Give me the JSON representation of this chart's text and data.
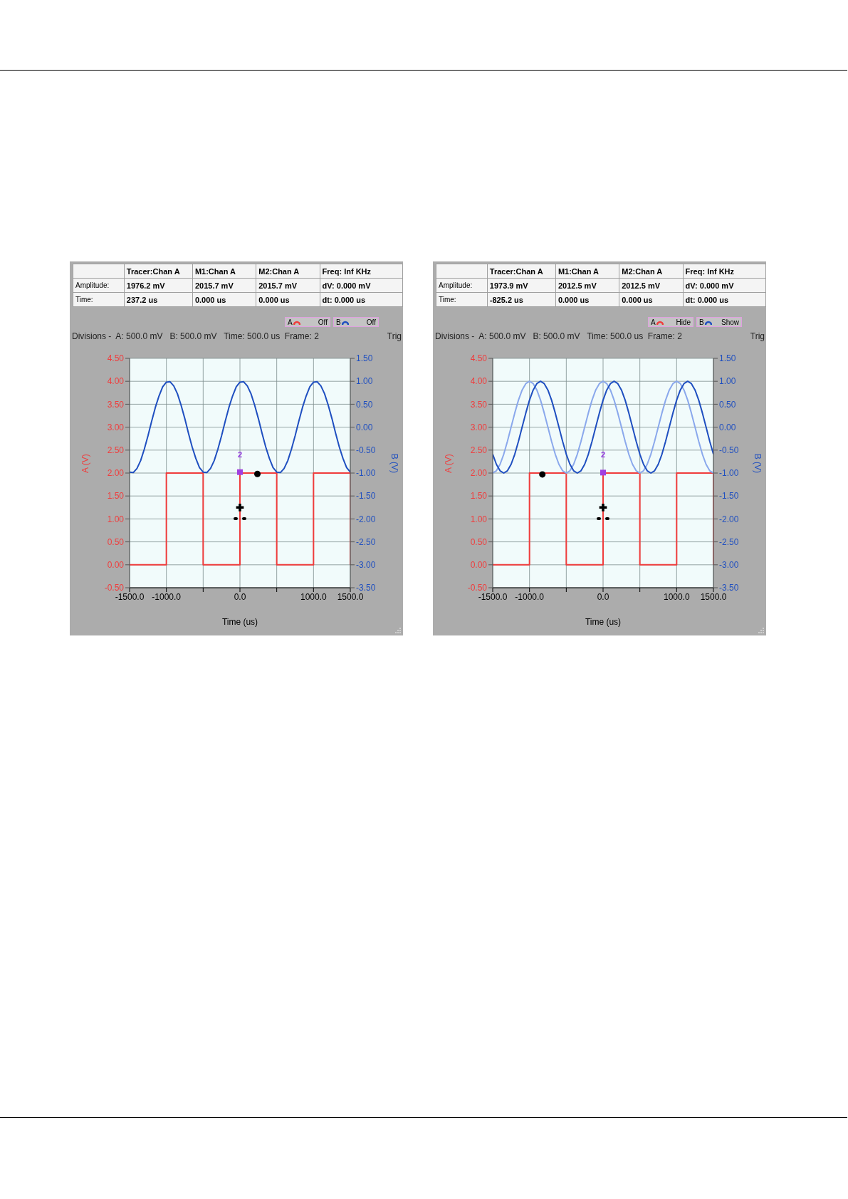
{
  "chart_data": [
    {
      "type": "line",
      "xlabel": "Time (us)",
      "ylabel": "A (V)",
      "y2label": "B (V)",
      "annotations": [
        "Tracer:Chan A",
        "M1:Chan A",
        "M2:Chan A",
        "Freq: Inf KHz",
        "Amplitude:",
        "1976.2 mV",
        "2015.7 mV",
        "2015.7 mV",
        "dV: 0.000 mV",
        "Time:",
        "237.2 us",
        "0.000 us",
        "0.000 us",
        "dt: 0.000 us",
        "A",
        "Off",
        "B",
        "Off",
        "Divisions -  A: 500.0 mV   B: 500.0 mV   Time: 500.0 us  Frame: 2",
        "Trig",
        "2"
      ],
      "x": [
        -1500,
        -1450,
        -1400,
        -1350,
        -1300,
        -1250,
        -1200,
        -1150,
        -1100,
        -1050,
        -1000,
        -950,
        -900,
        -850,
        -800,
        -750,
        -700,
        -650,
        -600,
        -550,
        -500,
        -450,
        -400,
        -350,
        -300,
        -250,
        -200,
        -150,
        -100,
        -50,
        0,
        50,
        100,
        150,
        200,
        250,
        300,
        350,
        400,
        450,
        500,
        550,
        600,
        650,
        700,
        750,
        800,
        850,
        900,
        950,
        1000,
        1050,
        1100,
        1150,
        1200,
        1250,
        1300,
        1350,
        1400,
        1450,
        1500
      ],
      "xlim": [
        -1500,
        1500
      ],
      "xticks": [
        {
          "value": -1500,
          "label": "-1500.0"
        },
        {
          "value": -1000,
          "label": "-1000.0"
        },
        {
          "value": -500,
          "label": null
        },
        {
          "value": 0,
          "label": "0.0"
        },
        {
          "value": 500,
          "label": null
        },
        {
          "value": 1000,
          "label": "1000.0"
        },
        {
          "value": 1500,
          "label": "1500.0"
        }
      ],
      "ylim": [
        -0.5,
        4.5
      ],
      "yticks": [
        {
          "value": -0.5,
          "label": "-0.50"
        },
        {
          "value": 0,
          "label": "0.00"
        },
        {
          "value": 0.5,
          "label": "0.50"
        },
        {
          "value": 1,
          "label": "1.00"
        },
        {
          "value": 1.5,
          "label": "1.50"
        },
        {
          "value": 2,
          "label": "2.00"
        },
        {
          "value": 2.5,
          "label": "2.50"
        },
        {
          "value": 3,
          "label": "3.00"
        },
        {
          "value": 3.5,
          "label": "3.50"
        },
        {
          "value": 4,
          "label": "4.00"
        },
        {
          "value": 4.5,
          "label": "4.50"
        }
      ],
      "y2lim": [
        -3.5,
        1.5
      ],
      "y2ticks": [
        {
          "value": -3.5,
          "label": "-3.50"
        },
        {
          "value": -3,
          "label": "-3.00"
        },
        {
          "value": -2.5,
          "label": "-2.50"
        },
        {
          "value": -2,
          "label": "-2.00"
        },
        {
          "value": -1.5,
          "label": "-1.50"
        },
        {
          "value": -1,
          "label": "-1.00"
        },
        {
          "value": -0.5,
          "label": "-0.50"
        },
        {
          "value": 0,
          "label": "0.00"
        },
        {
          "value": 0.5,
          "label": "0.50"
        },
        {
          "value": 1,
          "label": "1.00"
        },
        {
          "value": 1.5,
          "label": "1.50"
        }
      ],
      "grid": true,
      "series": [
        {
          "color": "#f03c3c",
          "x": [
            -1500,
            -1000,
            -1000,
            -500,
            -500,
            0,
            0,
            500,
            500,
            1000,
            1000,
            1500,
            1500
          ],
          "values": [
            0,
            0,
            2,
            2,
            0,
            0,
            2,
            2,
            0,
            0,
            2,
            2,
            0
          ]
        },
        {
          "axis": "y2",
          "color": "#1f4fc0",
          "values": [
            -0.98,
            -0.99,
            -0.9,
            -0.73,
            -0.48,
            -0.19,
            0.13,
            0.43,
            0.68,
            0.88,
            0.98,
            0.99,
            0.9,
            0.73,
            0.48,
            0.19,
            -0.13,
            -0.43,
            -0.68,
            -0.88,
            -0.98,
            -0.99,
            -0.9,
            -0.73,
            -0.48,
            -0.19,
            0.13,
            0.43,
            0.68,
            0.88,
            0.98,
            0.99,
            0.9,
            0.73,
            0.48,
            0.19,
            -0.13,
            -0.43,
            -0.68,
            -0.88,
            -0.98,
            -0.99,
            -0.9,
            -0.73,
            -0.48,
            -0.19,
            0.13,
            0.43,
            0.68,
            0.88,
            0.98,
            0.99,
            0.9,
            0.73,
            0.48,
            0.19,
            -0.13,
            -0.43,
            -0.68,
            -0.88,
            -0.98
          ]
        },
        {
          "type": "scatter",
          "marker": "circle",
          "color": "#000000",
          "x": [
            237.2
          ],
          "values": [
            1.98
          ]
        },
        {
          "type": "scatter",
          "marker": "cross",
          "color": "#000000",
          "x": [
            0
          ],
          "values": [
            1.25
          ]
        },
        {
          "type": "scatter",
          "marker": "square",
          "color": "#a040e0",
          "x": [
            0
          ],
          "values": [
            2.02
          ]
        }
      ]
    },
    {
      "type": "line",
      "xlabel": "Time (us)",
      "ylabel": "A (V)",
      "y2label": "B (V)",
      "annotations": [
        "Tracer:Chan A",
        "M1:Chan A",
        "M2:Chan A",
        "Freq: Inf KHz",
        "Amplitude:",
        "1973.9 mV",
        "2012.5 mV",
        "2012.5 mV",
        "dV: 0.000 mV",
        "Time:",
        "-825.2 us",
        "0.000 us",
        "0.000 us",
        "dt: 0.000 us",
        "A",
        "Hide",
        "B",
        "Show",
        "Divisions -  A: 500.0 mV   B: 500.0 mV   Time: 500.0 us  Frame: 2",
        "Trig",
        "2"
      ],
      "x": [
        -1500,
        -1450,
        -1400,
        -1350,
        -1300,
        -1250,
        -1200,
        -1150,
        -1100,
        -1050,
        -1000,
        -950,
        -900,
        -850,
        -800,
        -750,
        -700,
        -650,
        -600,
        -550,
        -500,
        -450,
        -400,
        -350,
        -300,
        -250,
        -200,
        -150,
        -100,
        -50,
        0,
        50,
        100,
        150,
        200,
        250,
        300,
        350,
        400,
        450,
        500,
        550,
        600,
        650,
        700,
        750,
        800,
        850,
        900,
        950,
        1000,
        1050,
        1100,
        1150,
        1200,
        1250,
        1300,
        1350,
        1400,
        1450,
        1500
      ],
      "xlim": [
        -1500,
        1500
      ],
      "xticks": [
        {
          "value": -1500,
          "label": "-1500.0"
        },
        {
          "value": -1000,
          "label": "-1000.0"
        },
        {
          "value": -500,
          "label": null
        },
        {
          "value": 0,
          "label": "0.0"
        },
        {
          "value": 500,
          "label": null
        },
        {
          "value": 1000,
          "label": "1000.0"
        },
        {
          "value": 1500,
          "label": "1500.0"
        }
      ],
      "ylim": [
        -0.5,
        4.5
      ],
      "yticks": [
        {
          "value": -0.5,
          "label": "-0.50"
        },
        {
          "value": 0,
          "label": "0.00"
        },
        {
          "value": 0.5,
          "label": "0.50"
        },
        {
          "value": 1,
          "label": "1.00"
        },
        {
          "value": 1.5,
          "label": "1.50"
        },
        {
          "value": 2,
          "label": "2.00"
        },
        {
          "value": 2.5,
          "label": "2.50"
        },
        {
          "value": 3,
          "label": "3.00"
        },
        {
          "value": 3.5,
          "label": "3.50"
        },
        {
          "value": 4,
          "label": "4.00"
        },
        {
          "value": 4.5,
          "label": "4.50"
        }
      ],
      "y2lim": [
        -3.5,
        1.5
      ],
      "y2ticks": [
        {
          "value": -3.5,
          "label": "-3.50"
        },
        {
          "value": -3,
          "label": "-3.00"
        },
        {
          "value": -2.5,
          "label": "-2.50"
        },
        {
          "value": -2,
          "label": "-2.00"
        },
        {
          "value": -1.5,
          "label": "-1.50"
        },
        {
          "value": -1,
          "label": "-1.00"
        },
        {
          "value": -0.5,
          "label": "-0.50"
        },
        {
          "value": 0,
          "label": "0.00"
        },
        {
          "value": 0.5,
          "label": "0.50"
        },
        {
          "value": 1,
          "label": "1.00"
        },
        {
          "value": 1.5,
          "label": "1.50"
        }
      ],
      "grid": true,
      "series": [
        {
          "color": "#f03c3c",
          "x": [
            -1500,
            -1000,
            -1000,
            -500,
            -500,
            0,
            0,
            500,
            500,
            1000,
            1000,
            1500,
            1500
          ],
          "values": [
            0,
            0,
            2,
            2,
            0,
            0,
            2,
            2,
            0,
            0,
            2,
            2,
            0
          ]
        },
        {
          "axis": "y2",
          "color": "#8aa8ec",
          "values": [
            -1,
            -0.95,
            -0.81,
            -0.59,
            -0.31,
            0,
            0.31,
            0.59,
            0.81,
            0.95,
            1,
            0.95,
            0.81,
            0.59,
            0.31,
            0,
            -0.31,
            -0.59,
            -0.81,
            -0.95,
            -1,
            -0.95,
            -0.81,
            -0.59,
            -0.31,
            0,
            0.31,
            0.59,
            0.81,
            0.95,
            1,
            0.95,
            0.81,
            0.59,
            0.31,
            0,
            -0.31,
            -0.59,
            -0.81,
            -0.95,
            -1,
            -0.95,
            -0.81,
            -0.59,
            -0.31,
            0,
            0.31,
            0.59,
            0.81,
            0.95,
            1,
            0.95,
            0.81,
            0.59,
            0.31,
            0,
            -0.31,
            -0.59,
            -0.81,
            -0.95,
            -1
          ]
        },
        {
          "axis": "y2",
          "color": "#1f4fc0",
          "values": [
            -0.59,
            -0.81,
            -0.95,
            -1,
            -0.95,
            -0.81,
            -0.59,
            -0.31,
            0,
            0.31,
            0.59,
            0.81,
            0.95,
            1,
            0.95,
            0.81,
            0.59,
            0.31,
            0,
            -0.31,
            -0.59,
            -0.81,
            -0.95,
            -1,
            -0.95,
            -0.81,
            -0.59,
            -0.31,
            0,
            0.31,
            0.59,
            0.81,
            0.95,
            1,
            0.95,
            0.81,
            0.59,
            0.31,
            0,
            -0.31,
            -0.59,
            -0.81,
            -0.95,
            -1,
            -0.95,
            -0.81,
            -0.59,
            -0.31,
            0,
            0.31,
            0.59,
            0.81,
            0.95,
            1,
            0.95,
            0.81,
            0.59,
            0.31,
            0,
            -0.31,
            -0.59
          ]
        },
        {
          "type": "scatter",
          "marker": "circle",
          "color": "#000000",
          "x": [
            -825.2
          ],
          "values": [
            1.97
          ]
        },
        {
          "type": "scatter",
          "marker": "cross",
          "color": "#000000",
          "x": [
            0
          ],
          "values": [
            1.25
          ]
        },
        {
          "type": "scatter",
          "marker": "square",
          "color": "#a040e0",
          "x": [
            0
          ],
          "values": [
            2.01
          ]
        }
      ]
    }
  ]
}
